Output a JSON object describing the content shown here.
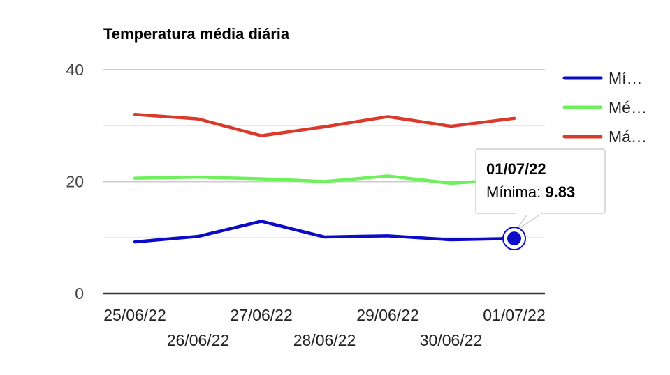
{
  "chart_data": {
    "type": "line",
    "title": "Temperatura média diária",
    "categories": [
      "25/06/22",
      "26/06/22",
      "27/06/22",
      "28/06/22",
      "29/06/22",
      "30/06/22",
      "01/07/22"
    ],
    "ylim": [
      0,
      40
    ],
    "yticks": [
      0,
      20,
      40
    ],
    "grid": true,
    "legend_position": "right",
    "series": [
      {
        "name": "Mí…",
        "color": "#0b0bc8",
        "values": [
          9.2,
          10.2,
          12.9,
          10.1,
          10.3,
          9.6,
          9.83
        ]
      },
      {
        "name": "Mé…",
        "color": "#6ef05c",
        "values": [
          20.6,
          20.8,
          20.5,
          20.0,
          21.0,
          19.7,
          20.4
        ]
      },
      {
        "name": "Má…",
        "color": "#d93a2b",
        "values": [
          32.0,
          31.2,
          28.2,
          29.8,
          31.6,
          29.9,
          31.3
        ]
      }
    ],
    "tooltip": {
      "title": "01/07/22",
      "label": "Mínima:",
      "value": "9.83",
      "series_index": 0,
      "point_index": 6
    }
  }
}
